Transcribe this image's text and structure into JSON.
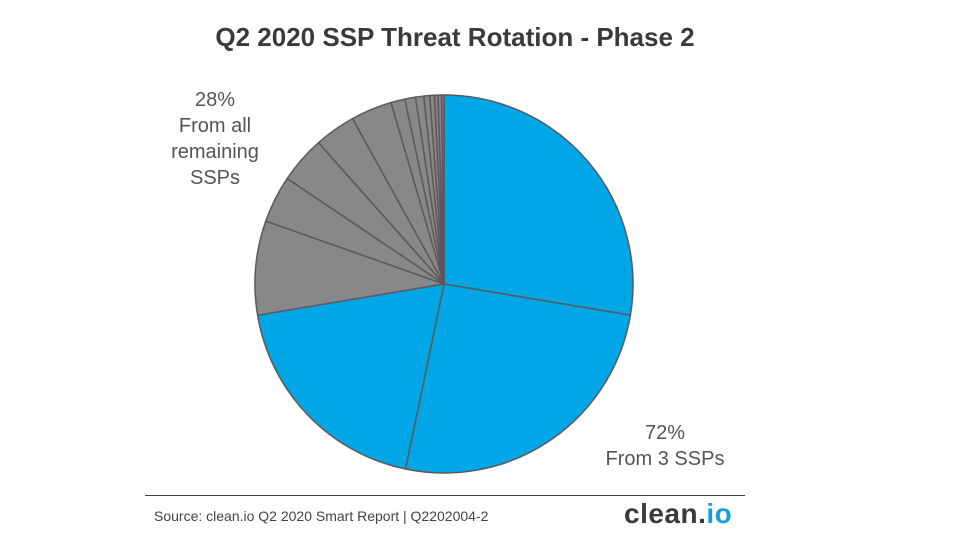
{
  "chart_data": {
    "type": "pie",
    "title": "Q2 2020 SSP Threat Rotation - Phase 2",
    "slices": [
      {
        "group": "top3",
        "value": 27.5
      },
      {
        "group": "top3",
        "value": 25.5
      },
      {
        "group": "top3",
        "value": 19.0
      },
      {
        "group": "rest",
        "value": 8.0
      },
      {
        "group": "rest",
        "value": 4.0
      },
      {
        "group": "rest",
        "value": 4.0
      },
      {
        "group": "rest",
        "value": 3.5
      },
      {
        "group": "rest",
        "value": 3.5
      },
      {
        "group": "rest",
        "value": 1.2
      },
      {
        "group": "rest",
        "value": 0.9
      },
      {
        "group": "rest",
        "value": 0.7
      },
      {
        "group": "rest",
        "value": 0.5
      },
      {
        "group": "rest",
        "value": 0.4
      },
      {
        "group": "rest",
        "value": 0.3
      },
      {
        "group": "rest",
        "value": 0.3
      },
      {
        "group": "rest",
        "value": 0.2
      }
    ],
    "annotations": {
      "remaining": {
        "percent": "28%",
        "label": "From all remaining SSPs"
      },
      "top3": {
        "percent": "72%",
        "label": "From 3 SSPs"
      }
    },
    "colors": {
      "top3": "#00a6e5",
      "rest": "#888888",
      "edge": "#5a5a5a"
    }
  },
  "footer": {
    "source": "Source: clean.io Q2 2020 Smart Report | Q2202004-2",
    "logo_main": "clean.",
    "logo_accent": "io"
  }
}
